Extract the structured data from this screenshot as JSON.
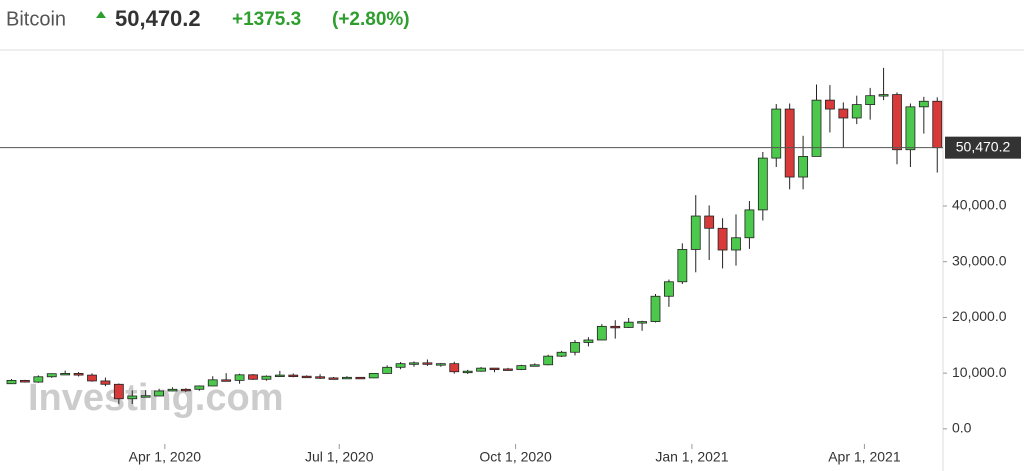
{
  "chart_data": {
    "type": "candlestick",
    "title": "Bitcoin",
    "last_price": {
      "value": 50470.2,
      "label": "50,470.2"
    },
    "change": "+1375.3",
    "change_percent": "(+2.80%)",
    "watermark": "Investing.com",
    "up_color": "#4cc94c",
    "down_color": "#d83a3a",
    "x": [
      "2020-01-12",
      "2020-01-19",
      "2020-01-26",
      "2020-02-02",
      "2020-02-09",
      "2020-02-16",
      "2020-02-23",
      "2020-03-01",
      "2020-03-08",
      "2020-03-15",
      "2020-03-22",
      "2020-03-29",
      "2020-04-05",
      "2020-04-12",
      "2020-04-19",
      "2020-04-26",
      "2020-05-03",
      "2020-05-10",
      "2020-05-17",
      "2020-05-24",
      "2020-05-31",
      "2020-06-07",
      "2020-06-14",
      "2020-06-21",
      "2020-06-28",
      "2020-07-05",
      "2020-07-12",
      "2020-07-19",
      "2020-07-26",
      "2020-08-02",
      "2020-08-09",
      "2020-08-16",
      "2020-08-23",
      "2020-08-30",
      "2020-09-06",
      "2020-09-13",
      "2020-09-20",
      "2020-09-27",
      "2020-10-04",
      "2020-10-11",
      "2020-10-18",
      "2020-10-25",
      "2020-11-01",
      "2020-11-08",
      "2020-11-15",
      "2020-11-22",
      "2020-11-29",
      "2020-12-06",
      "2020-12-13",
      "2020-12-20",
      "2020-12-27",
      "2021-01-03",
      "2021-01-10",
      "2021-01-17",
      "2021-01-24",
      "2021-01-31",
      "2021-02-07",
      "2021-02-14",
      "2021-02-21",
      "2021-02-28",
      "2021-03-07",
      "2021-03-14",
      "2021-03-21",
      "2021-03-28",
      "2021-04-04",
      "2021-04-11",
      "2021-04-18",
      "2021-04-25",
      "2021-05-02",
      "2021-05-09"
    ],
    "open": [
      8100,
      8700,
      8400,
      9350,
      9900,
      9950,
      9650,
      8600,
      8000,
      5400,
      5900,
      5900,
      6800,
      7100,
      7100,
      7700,
      8800,
      8700,
      9700,
      8900,
      9450,
      9650,
      9450,
      9350,
      9150,
      9100,
      9250,
      9150,
      9950,
      11050,
      11700,
      11850,
      11650,
      11700,
      10250,
      10350,
      10900,
      10750,
      10650,
      11350,
      11500,
      13050,
      13750,
      15500,
      15950,
      18400,
      18200,
      19150,
      19250,
      23800,
      26400,
      32200,
      38200,
      36000,
      32100,
      34300,
      39300,
      48600,
      57400,
      45200,
      48900,
      59000,
      57400,
      55800,
      58200,
      59800,
      60000,
      50100,
      57800,
      58800
    ],
    "high": [
      8950,
      8800,
      9600,
      9950,
      10450,
      10200,
      9950,
      9200,
      8150,
      6900,
      6950,
      7200,
      7450,
      7300,
      7800,
      9450,
      10000,
      9900,
      9850,
      9600,
      10400,
      9950,
      9600,
      9800,
      9300,
      9450,
      9300,
      9950,
      11400,
      12000,
      12100,
      12450,
      11800,
      12050,
      10600,
      11100,
      10950,
      10950,
      11500,
      11750,
      13300,
      14000,
      15950,
      16450,
      18800,
      19500,
      19900,
      19400,
      24200,
      26800,
      33300,
      41950,
      40100,
      37800,
      38500,
      40900,
      49700,
      58300,
      58400,
      52600,
      61800,
      61700,
      58600,
      59800,
      61200,
      64800,
      60400,
      58400,
      59600,
      59500
    ],
    "low": [
      8050,
      8300,
      8250,
      9150,
      9700,
      9400,
      8450,
      7650,
      4400,
      4450,
      5700,
      5850,
      6750,
      6600,
      6850,
      7650,
      8700,
      8100,
      8800,
      8650,
      9300,
      9250,
      9200,
      8950,
      8900,
      9050,
      9050,
      9100,
      9900,
      10700,
      11150,
      11300,
      11150,
      9900,
      9850,
      10250,
      10150,
      10450,
      10550,
      11200,
      11400,
      12900,
      13200,
      14800,
      15900,
      16200,
      18100,
      17600,
      19100,
      21900,
      26000,
      28100,
      30300,
      28800,
      29300,
      32300,
      37400,
      47000,
      43000,
      43000,
      49300,
      53200,
      50400,
      54700,
      55500,
      59000,
      47500,
      47000,
      53000,
      46000
    ],
    "close": [
      8700,
      8400,
      9350,
      9900,
      9950,
      9650,
      8600,
      8000,
      5400,
      5900,
      5950,
      6800,
      7100,
      7050,
      7700,
      8800,
      8750,
      9700,
      8900,
      9450,
      9650,
      9450,
      9350,
      9150,
      9100,
      9250,
      9150,
      9950,
      11050,
      11700,
      11850,
      11650,
      11700,
      10250,
      10350,
      10900,
      10750,
      10650,
      11350,
      11500,
      13050,
      13750,
      15500,
      15950,
      18400,
      18200,
      19150,
      19250,
      23800,
      26400,
      32200,
      38200,
      36000,
      32100,
      34300,
      39300,
      48600,
      57400,
      45200,
      48900,
      59000,
      57400,
      55800,
      58200,
      59800,
      60000,
      50100,
      57800,
      58800,
      50470.2
    ],
    "xlim": [
      "2020-01-06",
      "2021-05-12"
    ],
    "xticks": [
      {
        "value": "2020-04-01",
        "label": "Apr 1, 2020"
      },
      {
        "value": "2020-07-01",
        "label": "Jul 1, 2020"
      },
      {
        "value": "2020-10-01",
        "label": "Oct 1, 2020"
      },
      {
        "value": "2021-01-01",
        "label": "Jan 1, 2021"
      },
      {
        "value": "2021-04-01",
        "label": "Apr 1, 2021"
      }
    ],
    "ylim": [
      -2000,
      68000
    ],
    "yticks": [
      {
        "value": 0,
        "label": "0.0"
      },
      {
        "value": 10000,
        "label": "10,000.0"
      },
      {
        "value": 20000,
        "label": "20,000.0"
      },
      {
        "value": 30000,
        "label": "30,000.0"
      },
      {
        "value": 40000,
        "label": "40,000.0"
      }
    ]
  }
}
